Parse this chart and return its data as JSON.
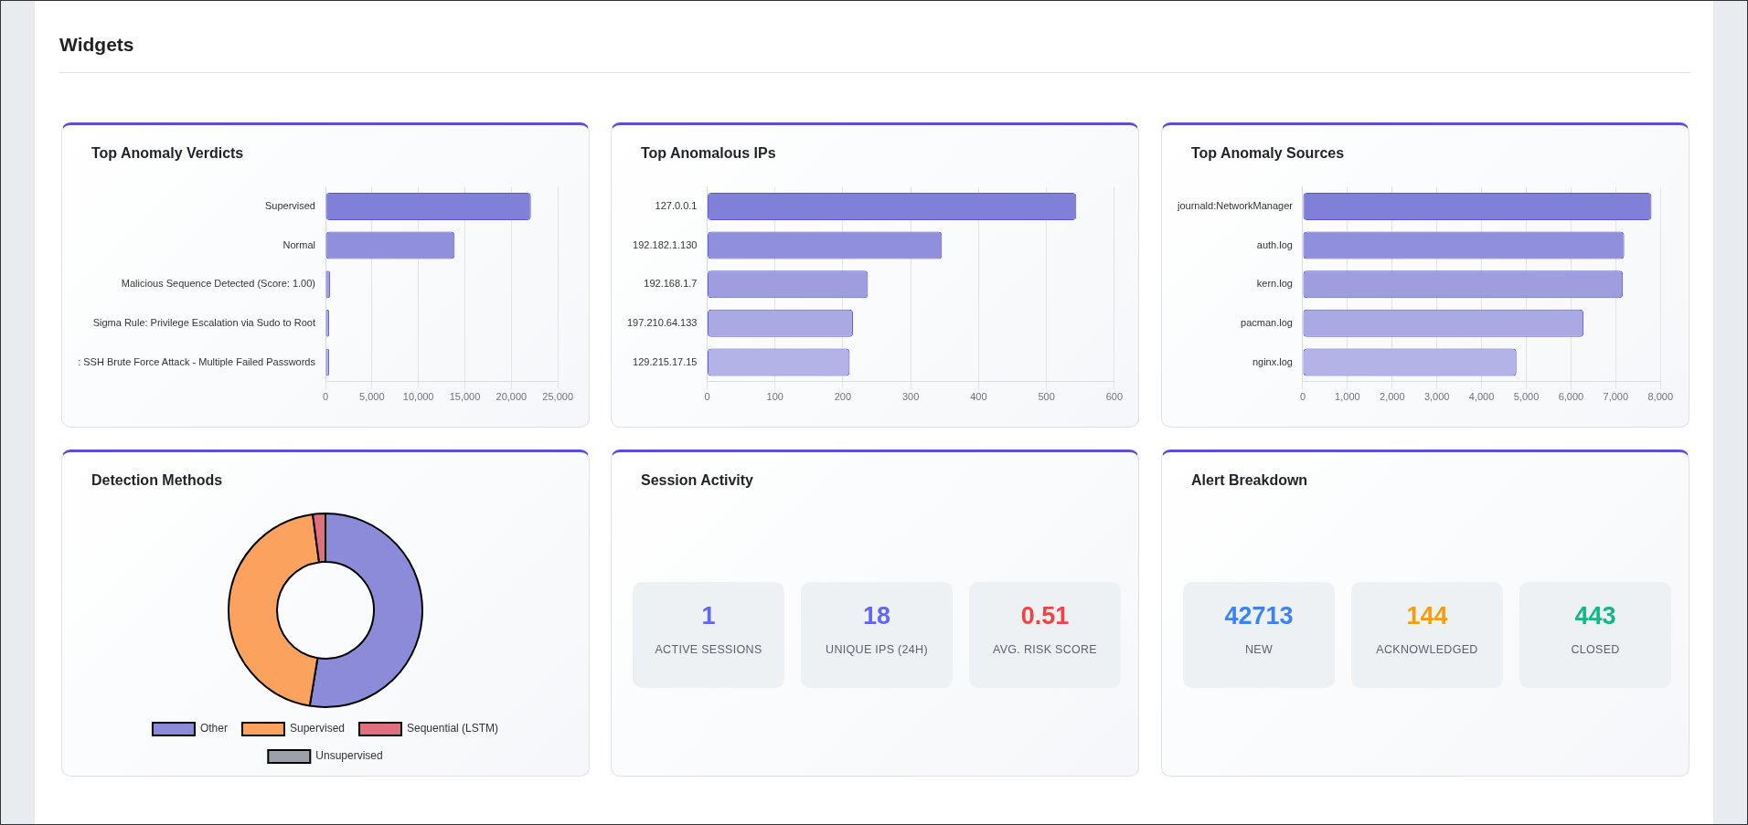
{
  "chart_data": [
    {
      "type": "other",
      "title": "Widgets"
    },
    {
      "type": "bar",
      "title": "Top Anomaly Verdicts",
      "orientation": "horizontal",
      "categories": [
        "Supervised",
        "Normal",
        "Malicious Sequence Detected (Score: 1.00)",
        "Sigma Rule: Privilege Escalation via Sudo to Root",
        ": SSH Brute Force Attack - Multiple Failed Passwords"
      ],
      "values": [
        22100,
        13900,
        500,
        400,
        400
      ],
      "colors": [
        "#8080d8",
        "#8f8fdb",
        "#9d9de0",
        "#a9a9e3",
        "#b3b3e7"
      ],
      "xlim": [
        0,
        25000
      ],
      "xticks": [
        0,
        {
          "value": 5000,
          "label": "5,000"
        },
        {
          "value": 10000,
          "label": "10,000"
        },
        {
          "value": 15000,
          "label": "15,000"
        },
        {
          "value": 20000,
          "label": "20,000"
        },
        {
          "value": 25000,
          "label": "25,000"
        }
      ],
      "grid": "x"
    },
    {
      "type": "bar",
      "title": "Top Anomalous IPs",
      "orientation": "horizontal",
      "categories": [
        "127.0.0.1",
        "192.182.1.130",
        "192.168.1.7",
        "197.210.64.133",
        "129.215.17.15"
      ],
      "values": [
        544,
        346,
        237,
        215,
        210
      ],
      "colors": [
        "#8080d8",
        "#8f8fdb",
        "#9d9de0",
        "#a9a9e3",
        "#b3b3e7"
      ],
      "xlim": [
        0,
        600
      ],
      "xticks": [
        0,
        100,
        200,
        300,
        400,
        500,
        600
      ],
      "grid": "x"
    },
    {
      "type": "bar",
      "title": "Top Anomaly Sources",
      "orientation": "horizontal",
      "categories": [
        "journald:NetworkManager",
        "auth.log",
        "kern.log",
        "pacman.log",
        "nginx.log"
      ],
      "values": [
        7800,
        7190,
        7160,
        6280,
        4780
      ],
      "colors": [
        "#8080d8",
        "#8f8fdb",
        "#9d9de0",
        "#a9a9e3",
        "#b3b3e7"
      ],
      "xlim": [
        0,
        8000
      ],
      "xticks": [
        0,
        {
          "value": 1000,
          "label": "1,000"
        },
        {
          "value": 2000,
          "label": "2,000"
        },
        {
          "value": 3000,
          "label": "3,000"
        },
        {
          "value": 4000,
          "label": "4,000"
        },
        {
          "value": 5000,
          "label": "5,000"
        },
        {
          "value": 6000,
          "label": "6,000"
        },
        {
          "value": 7000,
          "label": "7,000"
        },
        {
          "value": 8000,
          "label": "8,000"
        }
      ],
      "grid": "x"
    },
    {
      "type": "donut",
      "title": "Detection Methods",
      "categories": [
        "Other",
        "Supervised",
        "Sequential (LSTM)",
        "Unsupervised"
      ],
      "values": [
        52.6,
        45.3,
        2.1,
        0
      ],
      "colors": [
        "#8b8bda",
        "#fba35e",
        "#e1707e",
        "#9aa1a8"
      ],
      "legend": "bottom"
    },
    {
      "type": "other",
      "title": "Session Activity",
      "categories": [
        "ACTIVE SESSIONS",
        "UNIQUE IPS (24H)",
        "AVG. RISK SCORE"
      ],
      "values": [
        1,
        18,
        0.51
      ],
      "data_labels": true
    },
    {
      "type": "other",
      "title": "Alert Breakdown",
      "categories": [
        "NEW",
        "ACKNOWLEDGED",
        "CLOSED"
      ],
      "values": [
        42713,
        144,
        443
      ],
      "data_labels": true
    }
  ]
}
